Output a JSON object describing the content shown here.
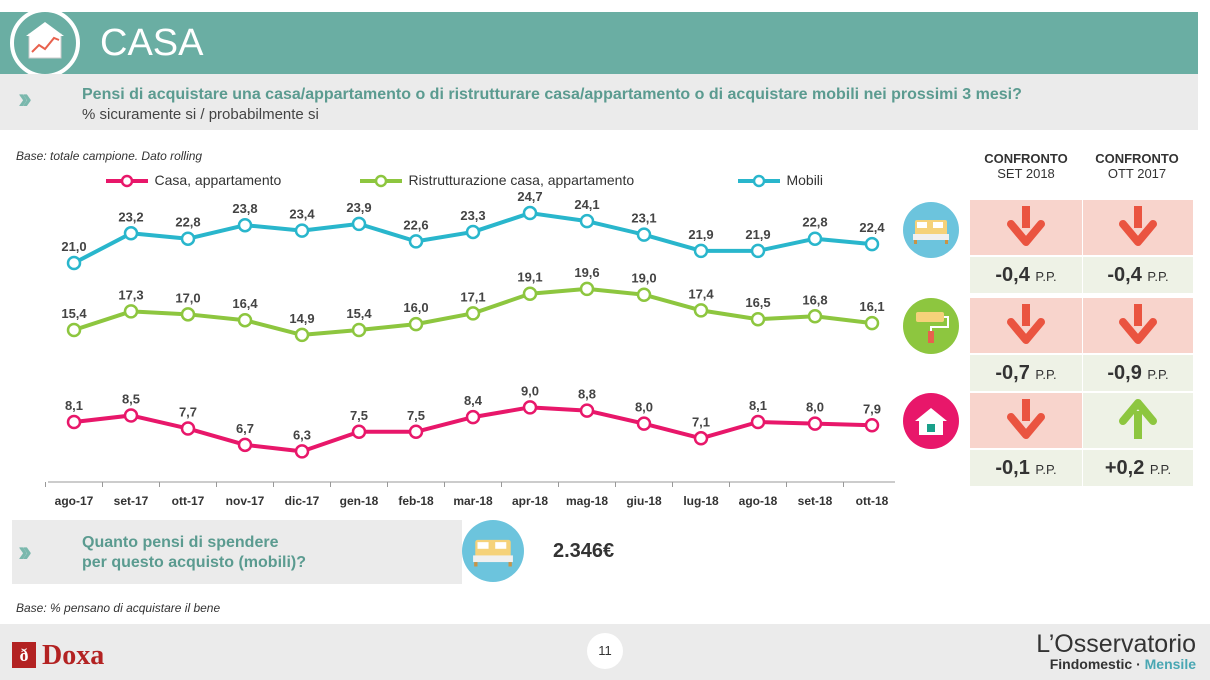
{
  "header": {
    "title": "CASA"
  },
  "question": {
    "main": "Pensi di acquistare una casa/appartamento o di ristrutturare casa/appartamento o di acquistare mobili nei prossimi 3 mesi?",
    "sub": "% sicuramente si / probabilmente si"
  },
  "base_note": "Base: totale campione. Dato rolling",
  "chart_data": {
    "type": "line",
    "categories": [
      "ago-17",
      "set-17",
      "ott-17",
      "nov-17",
      "dic-17",
      "gen-18",
      "feb-18",
      "mar-18",
      "apr-18",
      "mag-18",
      "giu-18",
      "lug-18",
      "ago-18",
      "set-18",
      "ott-18"
    ],
    "series": [
      {
        "name": "Casa, appartamento",
        "color": "#e8176a",
        "values": [
          8.1,
          8.5,
          7.7,
          6.7,
          6.3,
          7.5,
          7.5,
          8.4,
          9.0,
          8.8,
          8.0,
          7.1,
          8.1,
          8.0,
          7.9
        ],
        "labels": [
          "8,1",
          "8,5",
          "7,7",
          "6,7",
          "6,3",
          "7,5",
          "7,5",
          "8,4",
          "9,0",
          "8,8",
          "8,0",
          "7,1",
          "8,1",
          "8,0",
          "7,9"
        ]
      },
      {
        "name": "Ristrutturazione casa, appartamento",
        "color": "#8dc63f",
        "values": [
          15.4,
          17.3,
          17.0,
          16.4,
          14.9,
          15.4,
          16.0,
          17.1,
          19.1,
          19.6,
          19.0,
          17.4,
          16.5,
          16.8,
          16.1
        ],
        "labels": [
          "15,4",
          "17,3",
          "17,0",
          "16,4",
          "14,9",
          "15,4",
          "16,0",
          "17,1",
          "19,1",
          "19,6",
          "19,0",
          "17,4",
          "16,5",
          "16,8",
          "16,1"
        ]
      },
      {
        "name": "Mobili",
        "color": "#29b6cc",
        "values": [
          21.0,
          23.2,
          22.8,
          23.8,
          23.4,
          23.9,
          22.6,
          23.3,
          24.7,
          24.1,
          23.1,
          21.9,
          21.9,
          22.8,
          22.4
        ],
        "labels": [
          "21,0",
          "23,2",
          "22,8",
          "23,8",
          "23,4",
          "23,9",
          "22,6",
          "23,3",
          "24,7",
          "24,1",
          "23,1",
          "21,9",
          "21,9",
          "22,8",
          "22,4"
        ]
      }
    ],
    "grid": false,
    "legend_position": "top"
  },
  "comparison": {
    "headers": [
      {
        "title": "CONFRONTO",
        "sub": "SET 2018"
      },
      {
        "title": "CONFRONTO",
        "sub": "OTT 2017"
      }
    ],
    "unit": "P.P.",
    "rows": [
      {
        "icon": "bed-icon",
        "values": [
          "-0,4",
          "-0,4"
        ],
        "directions": [
          "down",
          "down"
        ]
      },
      {
        "icon": "paint-roller-icon",
        "values": [
          "-0,7",
          "-0,9"
        ],
        "directions": [
          "down",
          "down"
        ]
      },
      {
        "icon": "house-icon",
        "values": [
          "-0,1",
          "+0,2"
        ],
        "directions": [
          "down",
          "up"
        ]
      }
    ],
    "colors": {
      "down_bg": "#f8d4cc",
      "down_arrow": "#ea5440",
      "up_arrow": "#8dc63f",
      "value_bg": "#eef2e6"
    }
  },
  "question2": {
    "text_line1": "Quanto pensi di spendere",
    "text_line2": "per questo acquisto (mobili)?",
    "amount": "2.346€"
  },
  "base_note2": "Base: % pensano di acquistare il bene",
  "footer": {
    "page": "11",
    "logo_doxa": "Doxa",
    "osservatorio": "L’Osservatorio",
    "findomestic": "Findomestic",
    "separator": "·",
    "mensile": "Mensile"
  }
}
